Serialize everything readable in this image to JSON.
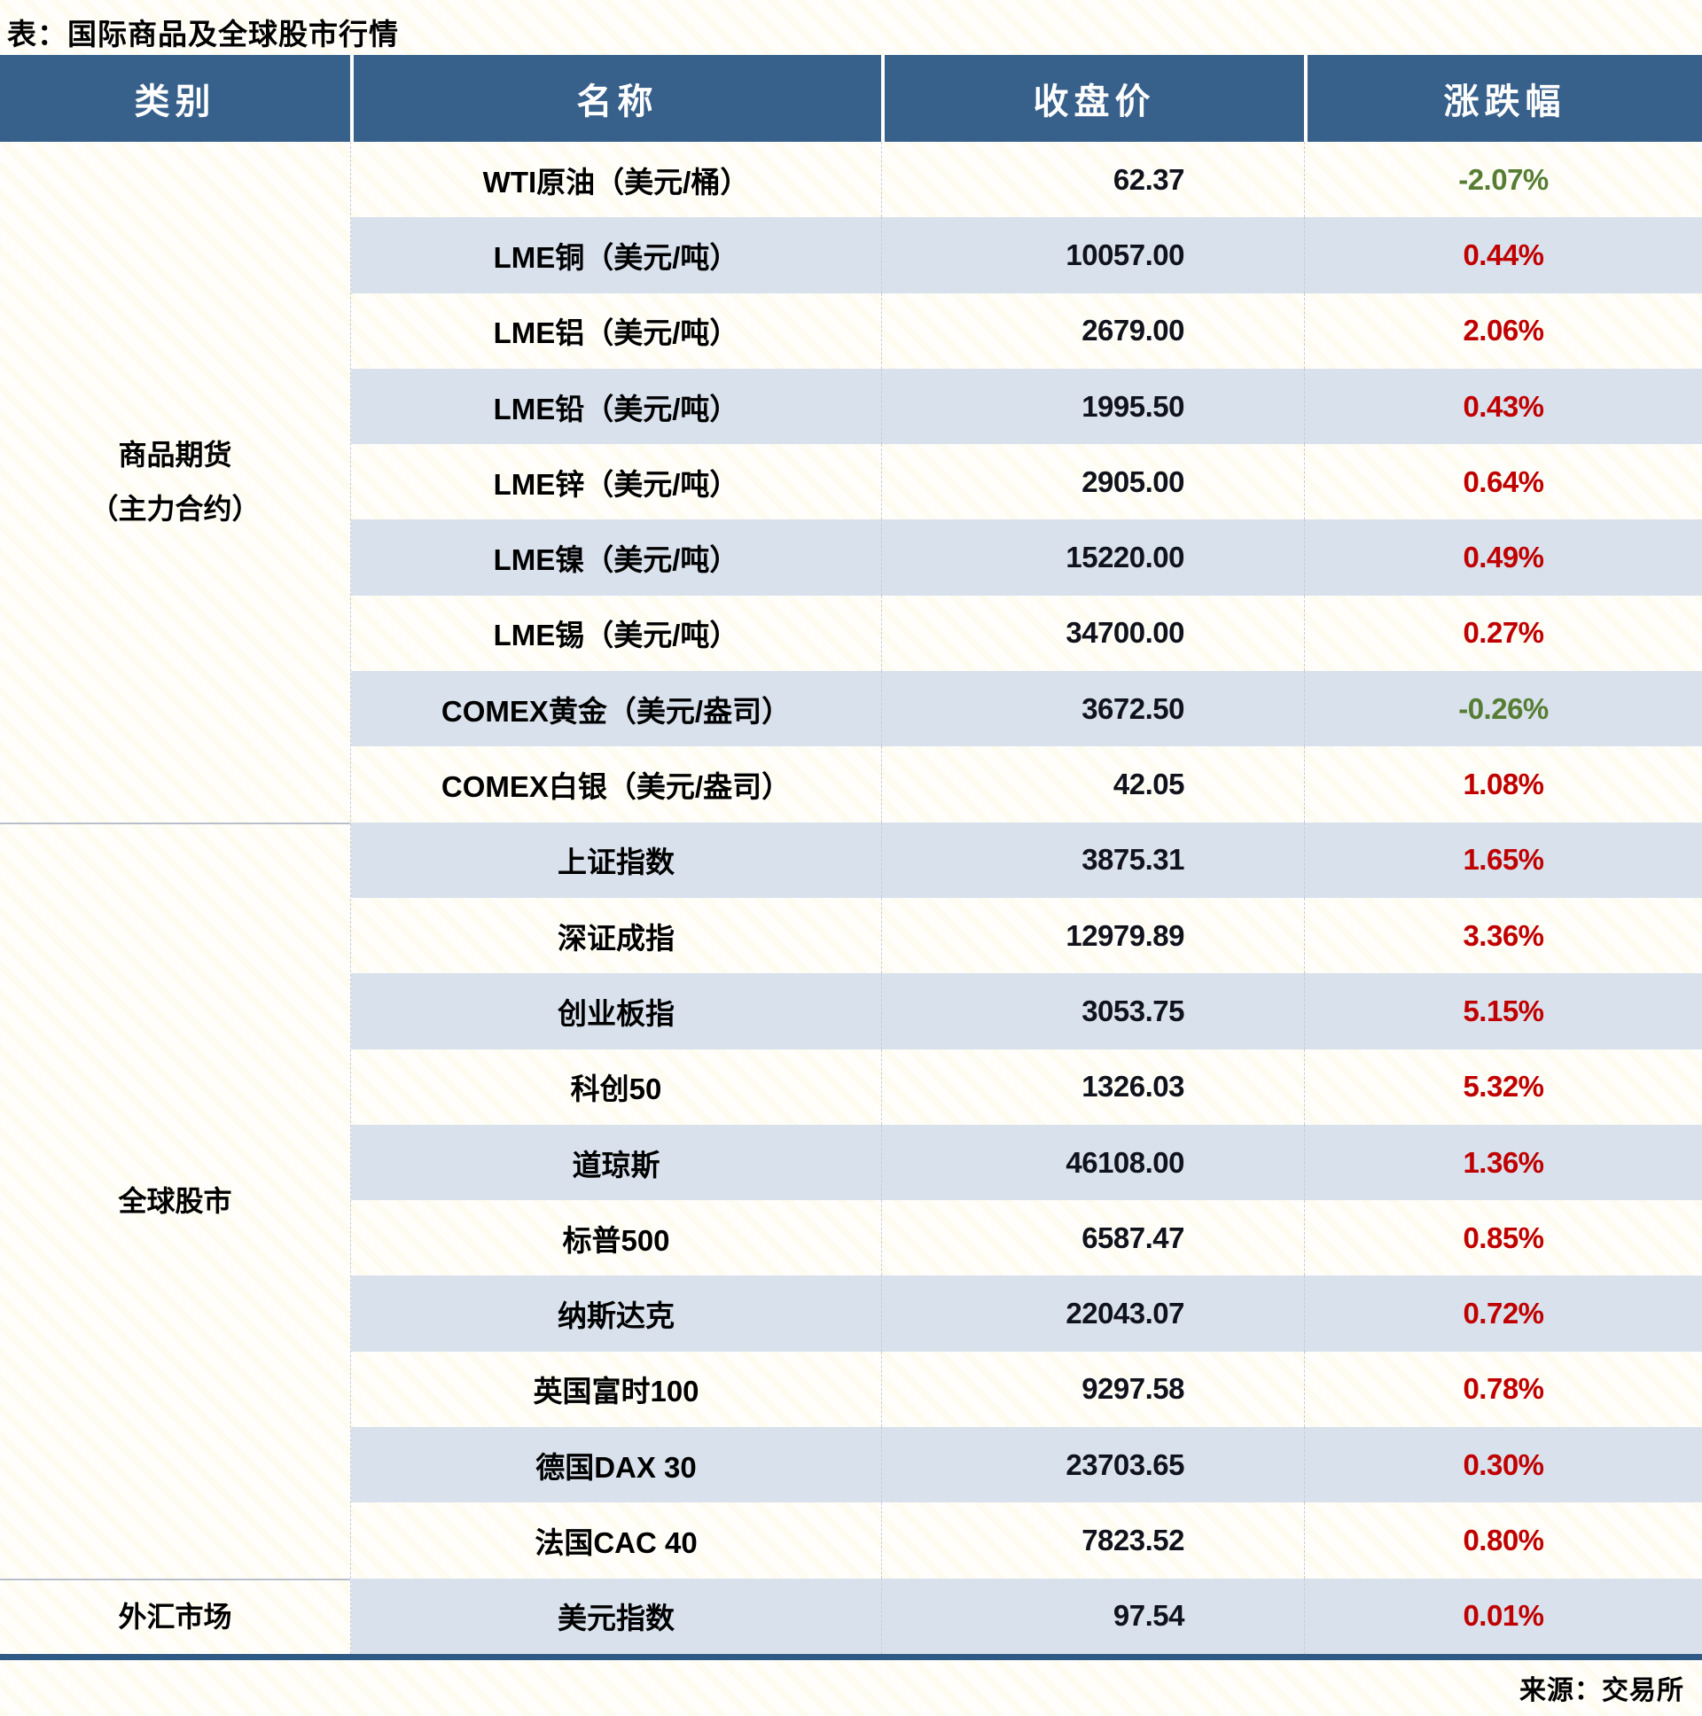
{
  "title": "表：国际商品及全球股市行情",
  "source_note": "来源：交易所",
  "colors": {
    "up_red": "#C00000",
    "down_green": "#567D33",
    "header_bg": "#37608B",
    "stripe_blue": "#D9E1EC",
    "bottom_border_navy": "#2E5A85"
  },
  "chart_data": {
    "type": "table",
    "title": "表：国际商品及全球股市行情",
    "columns": [
      "类别",
      "名称",
      "收盘价",
      "涨跌幅"
    ],
    "groups": [
      {
        "category_lines": [
          "商品期货",
          "（主力合约）"
        ],
        "rows": [
          {
            "name": "WTI原油（美元/桶）",
            "close": "62.37",
            "change": "-2.07%",
            "direction": "down"
          },
          {
            "name": "LME铜（美元/吨）",
            "close": "10057.00",
            "change": "0.44%",
            "direction": "up"
          },
          {
            "name": "LME铝（美元/吨）",
            "close": "2679.00",
            "change": "2.06%",
            "direction": "up"
          },
          {
            "name": "LME铅（美元/吨）",
            "close": "1995.50",
            "change": "0.43%",
            "direction": "up"
          },
          {
            "name": "LME锌（美元/吨）",
            "close": "2905.00",
            "change": "0.64%",
            "direction": "up"
          },
          {
            "name": "LME镍（美元/吨）",
            "close": "15220.00",
            "change": "0.49%",
            "direction": "up"
          },
          {
            "name": "LME锡（美元/吨）",
            "close": "34700.00",
            "change": "0.27%",
            "direction": "up"
          },
          {
            "name": "COMEX黄金（美元/盎司）",
            "close": "3672.50",
            "change": "-0.26%",
            "direction": "down"
          },
          {
            "name": "COMEX白银（美元/盎司）",
            "close": "42.05",
            "change": "1.08%",
            "direction": "up"
          }
        ]
      },
      {
        "category_lines": [
          "全球股市"
        ],
        "rows": [
          {
            "name": "上证指数",
            "close": "3875.31",
            "change": "1.65%",
            "direction": "up"
          },
          {
            "name": "深证成指",
            "close": "12979.89",
            "change": "3.36%",
            "direction": "up"
          },
          {
            "name": "创业板指",
            "close": "3053.75",
            "change": "5.15%",
            "direction": "up"
          },
          {
            "name": "科创50",
            "close": "1326.03",
            "change": "5.32%",
            "direction": "up"
          },
          {
            "name": "道琼斯",
            "close": "46108.00",
            "change": "1.36%",
            "direction": "up"
          },
          {
            "name": "标普500",
            "close": "6587.47",
            "change": "0.85%",
            "direction": "up"
          },
          {
            "name": "纳斯达克",
            "close": "22043.07",
            "change": "0.72%",
            "direction": "up"
          },
          {
            "name": "英国富时100",
            "close": "9297.58",
            "change": "0.78%",
            "direction": "up"
          },
          {
            "name": "德国DAX 30",
            "close": "23703.65",
            "change": "0.30%",
            "direction": "up"
          },
          {
            "name": "法国CAC 40",
            "close": "7823.52",
            "change": "0.80%",
            "direction": "up"
          }
        ]
      },
      {
        "category_lines": [
          "外汇市场"
        ],
        "rows": [
          {
            "name": "美元指数",
            "close": "97.54",
            "change": "0.01%",
            "direction": "up"
          }
        ]
      }
    ]
  }
}
